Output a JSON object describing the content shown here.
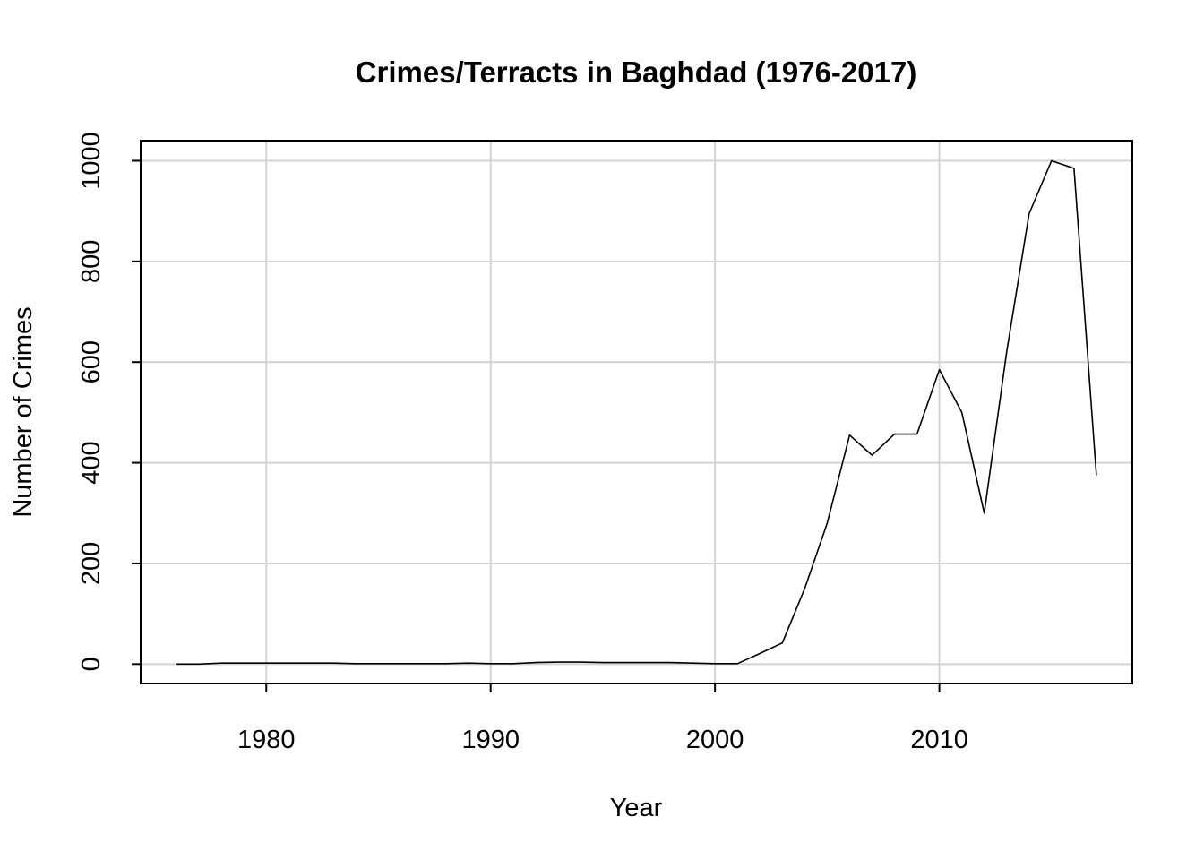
{
  "chart_data": {
    "type": "line",
    "title": "Crimes/Terracts in Baghdad (1976-2017)",
    "xlabel": "Year",
    "ylabel": "Number of Crimes",
    "xlim": [
      1974.4,
      2018.6
    ],
    "ylim": [
      -38.6,
      1040
    ],
    "xticks": [
      1980,
      1990,
      2000,
      2010
    ],
    "yticks": [
      0,
      200,
      400,
      600,
      800,
      1000
    ],
    "grid": true,
    "legend": "none",
    "series": [
      {
        "x": [
          1976,
          1977,
          1978,
          1979,
          1980,
          1981,
          1982,
          1983,
          1984,
          1985,
          1986,
          1987,
          1988,
          1989,
          1990,
          1991,
          1992,
          1993,
          1994,
          1995,
          1996,
          1997,
          1998,
          1999,
          2000,
          2001,
          2002,
          2003,
          2004,
          2005,
          2006,
          2007,
          2008,
          2009,
          2010,
          2011,
          2012,
          2013,
          2014,
          2015,
          2016,
          2017
        ],
        "y": [
          0,
          0,
          2,
          2,
          2,
          2,
          2,
          2,
          1,
          1,
          1,
          1,
          1,
          2,
          1,
          1,
          3,
          4,
          4,
          3,
          3,
          3,
          3,
          2,
          1,
          1,
          21,
          42,
          150,
          280,
          455,
          415,
          457,
          457,
          585,
          500,
          300,
          620,
          895,
          1000,
          985,
          375
        ]
      }
    ]
  },
  "colors": {
    "line": "#000000",
    "grid": "#d3d3d3",
    "axis": "#000000"
  }
}
